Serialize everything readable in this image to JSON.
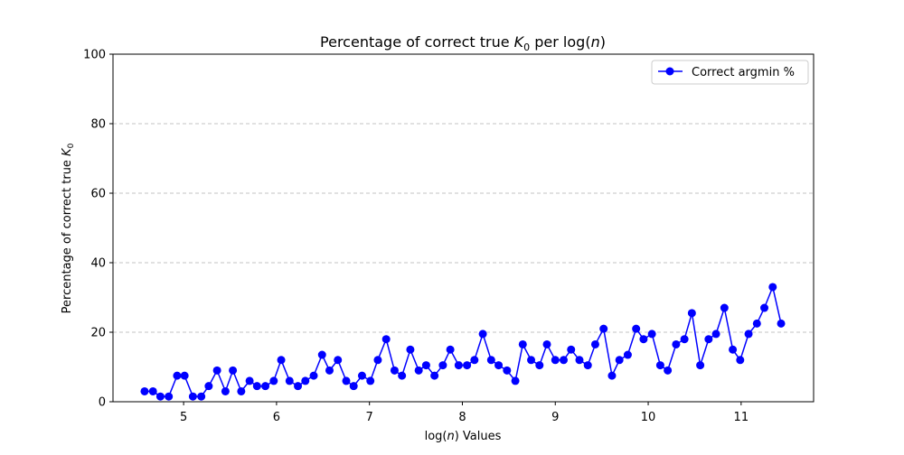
{
  "chart_data": {
    "type": "line",
    "title_prefix": "Percentage of correct true ",
    "title_symbol": "K",
    "title_subscript": "0",
    "title_suffix_pre": " per log(",
    "title_suffix_var": "n",
    "title_suffix_post": ")",
    "xlabel_pre": "log(",
    "xlabel_var": "n",
    "xlabel_post": ") Values",
    "ylabel_prefix": "Percentage of correct true ",
    "ylabel_symbol": "K",
    "ylabel_subscript": "0",
    "xlim": [
      4.24,
      11.78
    ],
    "ylim": [
      0,
      100
    ],
    "xticks": [
      5,
      6,
      7,
      8,
      9,
      10,
      11
    ],
    "yticks": [
      0,
      20,
      40,
      60,
      80,
      100
    ],
    "grid": "y-dashed",
    "legend_position": "top-right",
    "series": [
      {
        "name": "Correct argmin %",
        "color": "#0000ff",
        "marker": "circle",
        "x": [
          4.58,
          4.67,
          4.75,
          4.84,
          4.93,
          5.01,
          5.1,
          5.19,
          5.27,
          5.36,
          5.45,
          5.53,
          5.62,
          5.71,
          5.79,
          5.88,
          5.97,
          6.05,
          6.14,
          6.23,
          6.31,
          6.4,
          6.49,
          6.57,
          6.66,
          6.75,
          6.83,
          6.92,
          7.01,
          7.09,
          7.18,
          7.27,
          7.35,
          7.44,
          7.53,
          7.61,
          7.7,
          7.79,
          7.87,
          7.96,
          8.05,
          8.13,
          8.22,
          8.31,
          8.39,
          8.48,
          8.57,
          8.65,
          8.74,
          8.83,
          8.91,
          9.0,
          9.09,
          9.17,
          9.26,
          9.35,
          9.43,
          9.52,
          9.61,
          9.69,
          9.78,
          9.87,
          9.95,
          10.04,
          10.13,
          10.21,
          10.3,
          10.39,
          10.47,
          10.56,
          10.65,
          10.73,
          10.82,
          10.91,
          10.99,
          11.08,
          11.17,
          11.25,
          11.34,
          11.43
        ],
        "y": [
          3.0,
          3.0,
          1.5,
          1.5,
          7.5,
          7.5,
          1.5,
          1.5,
          4.5,
          9.0,
          3.0,
          9.0,
          3.0,
          6.0,
          4.5,
          4.5,
          6.0,
          12.0,
          6.0,
          4.5,
          6.0,
          7.5,
          13.5,
          9.0,
          12.0,
          6.0,
          4.5,
          7.5,
          6.0,
          12.0,
          18.0,
          9.0,
          7.5,
          15.0,
          9.0,
          10.5,
          7.5,
          10.5,
          15.0,
          10.5,
          10.5,
          12.0,
          19.5,
          12.0,
          10.5,
          9.0,
          6.0,
          16.5,
          12.0,
          10.5,
          16.5,
          12.0,
          12.0,
          15.0,
          12.0,
          10.5,
          16.5,
          21.0,
          7.5,
          12.0,
          13.5,
          21.0,
          18.0,
          19.5,
          10.5,
          9.0,
          16.5,
          18.0,
          25.5,
          10.5,
          18.0,
          19.5,
          27.0,
          15.0,
          12.0,
          19.5,
          22.5,
          27.0,
          33.0,
          22.5
        ]
      }
    ]
  }
}
